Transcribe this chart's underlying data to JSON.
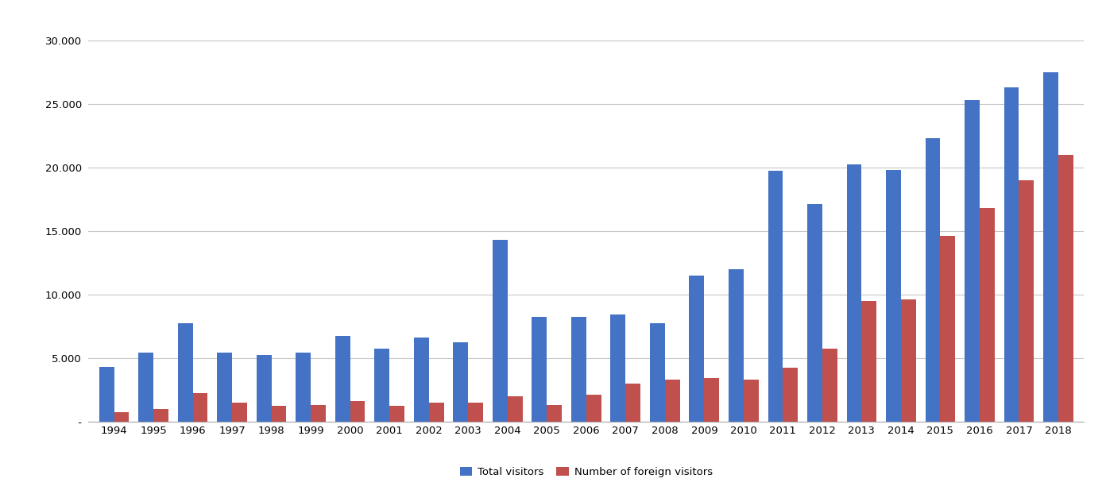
{
  "years": [
    1994,
    1995,
    1996,
    1997,
    1998,
    1999,
    2000,
    2001,
    2002,
    2003,
    2004,
    2005,
    2006,
    2007,
    2008,
    2009,
    2010,
    2011,
    2012,
    2013,
    2014,
    2015,
    2016,
    2017,
    2018
  ],
  "total_visitors": [
    4300,
    5400,
    7700,
    5400,
    5200,
    5400,
    6700,
    5700,
    6600,
    6200,
    14300,
    8200,
    8200,
    8400,
    7700,
    11500,
    12000,
    19700,
    17100,
    20200,
    19800,
    22300,
    25300,
    26300,
    27500
  ],
  "foreign_visitors": [
    700,
    1000,
    2200,
    1500,
    1200,
    1300,
    1600,
    1200,
    1500,
    1500,
    2000,
    1300,
    2100,
    3000,
    3300,
    3400,
    3300,
    4200,
    5700,
    9500,
    9600,
    14600,
    16800,
    19000,
    21000
  ],
  "bar_color_total": "#4472C4",
  "bar_color_foreign": "#C0504D",
  "ytick_labels": [
    " -",
    "5.000",
    "10.000",
    "15.000",
    "20.000",
    "25.000",
    "30.000"
  ],
  "ytick_values": [
    0,
    5000,
    10000,
    15000,
    20000,
    25000,
    30000
  ],
  "ylim": [
    0,
    32000
  ],
  "legend_labels": [
    "Total visitors",
    "Number of foreign visitors"
  ],
  "background_color": "#ffffff",
  "grid_color": "#c8c8c8",
  "bar_width": 0.38
}
